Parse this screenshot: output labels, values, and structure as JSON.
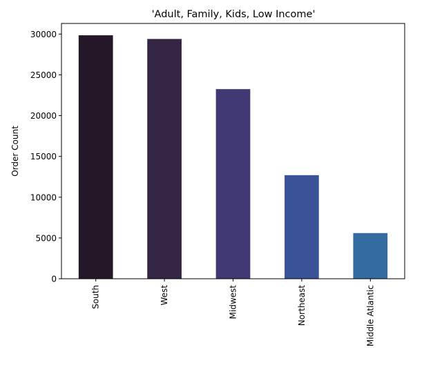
{
  "chart_data": {
    "type": "bar",
    "title": "'Adult, Family, Kids, Low Income'",
    "xlabel": "",
    "ylabel": "Order Count",
    "categories": [
      "South",
      "West",
      "Midwest",
      "Northeast",
      "Middle Atlantic"
    ],
    "values": [
      29850,
      29400,
      23250,
      12700,
      5600
    ],
    "colors": [
      "#231728",
      "#352545",
      "#3f3873",
      "#3a5396",
      "#346ca1"
    ],
    "ylim": [
      0,
      31300
    ],
    "yticks": [
      0,
      5000,
      10000,
      15000,
      20000,
      25000,
      30000
    ],
    "grid": false,
    "legend": null
  }
}
